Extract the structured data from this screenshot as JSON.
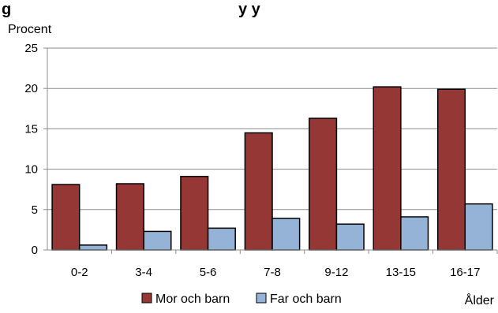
{
  "chart_data": {
    "type": "bar",
    "title": "",
    "title_fragment": "g",
    "title_fragment_2": "y   y",
    "ylabel": "Procent",
    "xlabel": "Ålder",
    "ylim": [
      0,
      25
    ],
    "yticks": [
      0,
      5,
      10,
      15,
      20,
      25
    ],
    "categories": [
      "0-2",
      "3-4",
      "5-6",
      "7-8",
      "9-12",
      "13-15",
      "16-17"
    ],
    "series": [
      {
        "name": "Mor och barn",
        "color": "#953735",
        "values": [
          8.1,
          8.2,
          9.1,
          14.5,
          16.3,
          20.2,
          19.9
        ]
      },
      {
        "name": "Far och barn",
        "color": "#95B3D7",
        "values": [
          0.6,
          2.3,
          2.7,
          3.9,
          3.2,
          4.1,
          5.7
        ]
      }
    ],
    "grid": true,
    "legend_position": "bottom"
  }
}
